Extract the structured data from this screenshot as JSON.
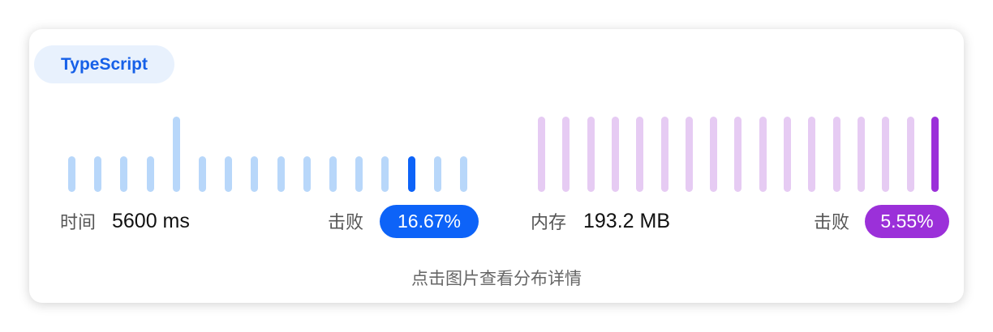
{
  "language": "TypeScript",
  "runtime": {
    "label": "时间",
    "value": "5600 ms",
    "beat_label": "击败",
    "beat_percent": "16.67%",
    "accent_color": "#0d63f8",
    "light_color": "#b8d7fa"
  },
  "memory": {
    "label": "内存",
    "value": "193.2 MB",
    "beat_label": "击败",
    "beat_percent": "5.55%",
    "accent_color": "#9b30d9",
    "light_color": "#e6cbf3"
  },
  "chart_data": [
    {
      "type": "bar",
      "title": "",
      "values": [
        1,
        1,
        1,
        1,
        2,
        1,
        1,
        1,
        1,
        1,
        1,
        1,
        1,
        1,
        1,
        1
      ],
      "highlight_index": 13
    },
    {
      "type": "bar",
      "title": "",
      "values": [
        1,
        1,
        1,
        1,
        1,
        1,
        1,
        1,
        1,
        1,
        1,
        1,
        1,
        1,
        1,
        1,
        1
      ],
      "highlight_index": 16
    }
  ],
  "footer_hint": "点击图片查看分布详情"
}
